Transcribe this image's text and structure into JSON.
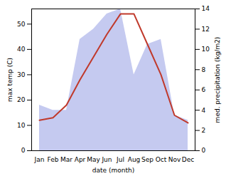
{
  "chart_data": {
    "type": "line",
    "categories": [
      "Jan",
      "Feb",
      "Mar",
      "Apr",
      "May",
      "Jun",
      "Jul",
      "Aug",
      "Sep",
      "Oct",
      "Nov",
      "Dec"
    ],
    "series": [
      {
        "type": "area",
        "axis": "y2",
        "color": "#c5caf0",
        "values": [
          4.5,
          4.0,
          4.0,
          11.0,
          12.0,
          13.5,
          14.0,
          7.5,
          10.5,
          11.0,
          3.5,
          3.0
        ]
      },
      {
        "type": "line",
        "color": "#c0392b",
        "values": [
          12,
          13,
          18,
          28,
          37,
          46,
          54,
          54,
          42,
          30,
          14,
          11
        ]
      }
    ],
    "xlabel": "date (month)",
    "ylabel": "max temp (C)",
    "y2label": "med. precipitation (kg/m2)",
    "ylim": [
      0,
      56
    ],
    "yticks": [
      0,
      10,
      20,
      30,
      40,
      50
    ],
    "y2lim": [
      0,
      14
    ],
    "y2ticks": [
      0,
      2,
      4,
      6,
      8,
      10,
      12,
      14
    ],
    "grid": false
  }
}
